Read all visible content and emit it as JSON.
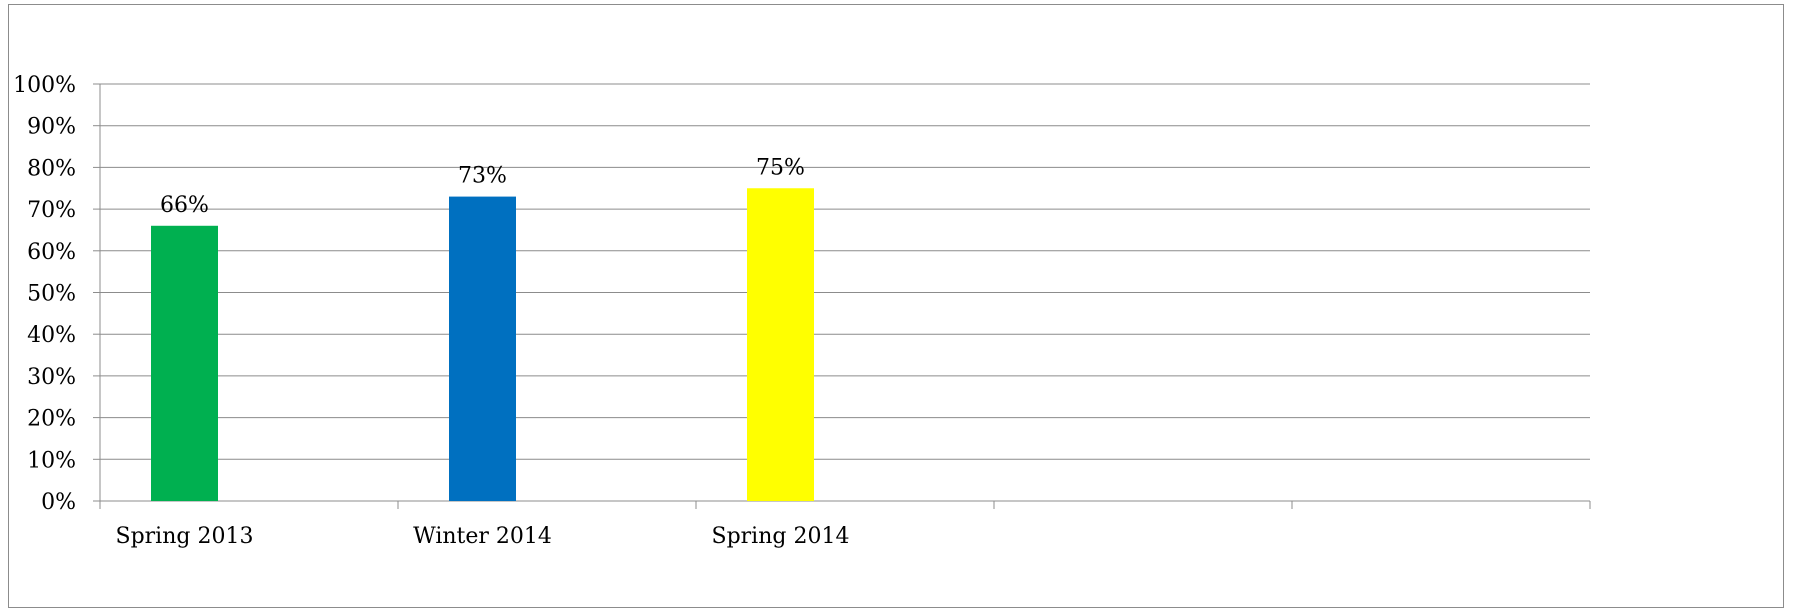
{
  "chart_data": {
    "type": "bar",
    "title": "",
    "xlabel": "",
    "ylabel": "",
    "ylim": [
      0,
      100
    ],
    "y_ticks": [
      0,
      10,
      20,
      30,
      40,
      50,
      60,
      70,
      80,
      90,
      100
    ],
    "y_tick_suffix": "%",
    "grid": true,
    "legend": "none",
    "category_slots": 5,
    "categories": [
      "Spring 2013",
      "Winter 2014",
      "Spring 2014"
    ],
    "values": [
      66,
      73,
      75
    ],
    "data_labels": [
      "66%",
      "73%",
      "75%"
    ],
    "colors": [
      "#00b050",
      "#0070c0",
      "#ffff00"
    ],
    "grid_color": "#8c8c8c",
    "axis_color": "#8c8c8c"
  }
}
